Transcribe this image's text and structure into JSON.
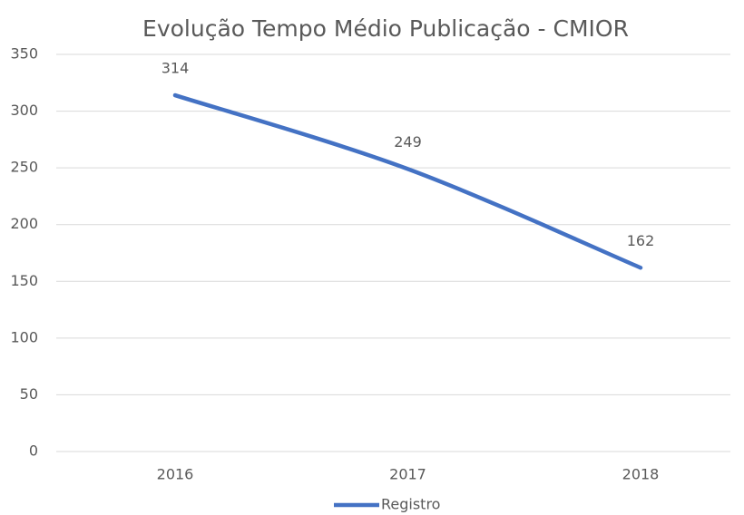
{
  "chart_data": {
    "type": "line",
    "title": "Evolução Tempo Médio Publicação - CMIOR",
    "categories": [
      "2016",
      "2017",
      "2018"
    ],
    "series": [
      {
        "name": "Registro",
        "color": "#4472c4",
        "values": [
          314,
          249,
          162
        ]
      }
    ],
    "ylim": [
      0,
      350
    ],
    "yticks": [
      0,
      50,
      100,
      150,
      200,
      250,
      300,
      350
    ],
    "grid": true,
    "legend": "bottom",
    "smooth": true,
    "data_labels": true
  }
}
